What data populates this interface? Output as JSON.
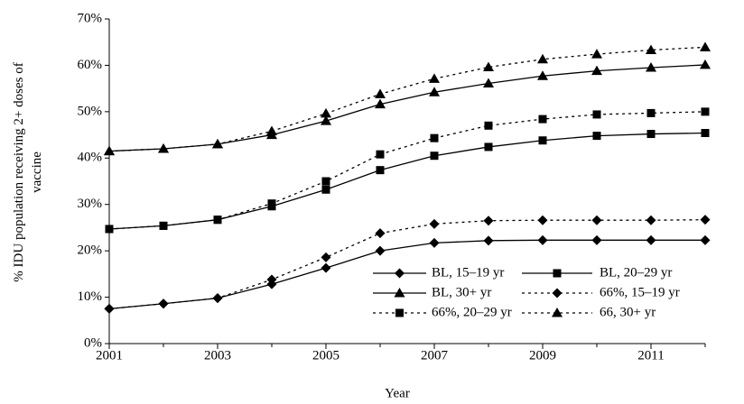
{
  "chart_data": {
    "type": "line",
    "x_label": "Year",
    "y_label": "% IDU population receiving 2+ doses of vaccine",
    "x": [
      2001,
      2002,
      2003,
      2004,
      2005,
      2006,
      2007,
      2008,
      2009,
      2010,
      2011,
      2012
    ],
    "xlim": [
      2001,
      2012
    ],
    "xticks": [
      2001,
      2003,
      2005,
      2007,
      2009,
      2011
    ],
    "ylim": [
      0,
      70
    ],
    "yticks": [
      {
        "value": 0,
        "label": "0%"
      },
      {
        "value": 10,
        "label": "10%"
      },
      {
        "value": 20,
        "label": "20%"
      },
      {
        "value": 30,
        "label": "30%"
      },
      {
        "value": 40,
        "label": "40%"
      },
      {
        "value": 50,
        "label": "50%"
      },
      {
        "value": 60,
        "label": "60%"
      },
      {
        "value": 70,
        "label": "70%"
      }
    ],
    "grid": false,
    "legend": "lower right",
    "series": [
      {
        "name": "BL, 15–19 yr",
        "color": "#000000",
        "marker": "diamond",
        "dashed": false,
        "values": [
          7.5,
          8.6,
          9.8,
          12.8,
          16.3,
          20.0,
          21.7,
          22.2,
          22.3,
          22.3,
          22.3,
          22.3
        ]
      },
      {
        "name": "BL, 20–29 yr",
        "color": "#000000",
        "marker": "square",
        "dashed": false,
        "values": [
          24.7,
          25.4,
          26.7,
          29.6,
          33.2,
          37.4,
          40.5,
          42.4,
          43.8,
          44.8,
          45.2,
          45.4
        ]
      },
      {
        "name": "BL, 30+ yr",
        "color": "#000000",
        "marker": "triangle",
        "dashed": false,
        "values": [
          41.5,
          42.0,
          43.0,
          45.0,
          48.0,
          51.6,
          54.2,
          56.1,
          57.7,
          58.8,
          59.5,
          60.1
        ]
      },
      {
        "name": "66%, 15–19 yr",
        "color": "#000000",
        "marker": "diamond",
        "dashed": true,
        "values": [
          7.5,
          8.6,
          9.8,
          13.8,
          18.6,
          23.8,
          25.8,
          26.5,
          26.6,
          26.6,
          26.6,
          26.7
        ]
      },
      {
        "name": "66%, 20–29 yr",
        "color": "#000000",
        "marker": "square",
        "dashed": true,
        "values": [
          24.7,
          25.4,
          26.7,
          30.2,
          35.0,
          40.8,
          44.3,
          47.0,
          48.4,
          49.4,
          49.7,
          50.0
        ]
      },
      {
        "name": "66, 30+ yr",
        "color": "#000000",
        "marker": "triangle",
        "dashed": true,
        "values": [
          41.5,
          42.0,
          43.0,
          45.8,
          49.6,
          53.8,
          57.1,
          59.6,
          61.3,
          62.4,
          63.3,
          63.9
        ]
      }
    ]
  }
}
